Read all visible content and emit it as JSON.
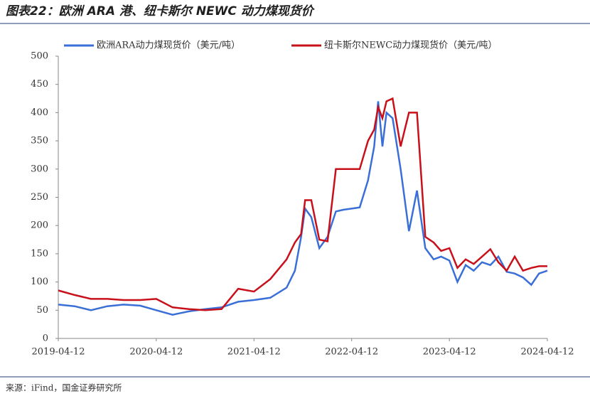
{
  "chart_data": {
    "type": "line",
    "title": "图表22：欧洲 ARA 港、纽卡斯尔 NEWC 动力煤现货价",
    "source": "来源：iFind，国金证券研究所",
    "x": [
      "2019-04-12",
      "2019-06-12",
      "2019-08-12",
      "2019-10-12",
      "2019-12-12",
      "2020-02-12",
      "2020-04-12",
      "2020-06-12",
      "2020-08-12",
      "2020-10-12",
      "2020-12-12",
      "2021-02-12",
      "2021-04-12",
      "2021-06-12",
      "2021-08-12",
      "2021-09-12",
      "2021-10-05",
      "2021-10-20",
      "2021-11-12",
      "2021-12-12",
      "2022-01-12",
      "2022-02-12",
      "2022-03-12",
      "2022-04-12",
      "2022-05-12",
      "2022-06-12",
      "2022-07-05",
      "2022-07-20",
      "2022-08-05",
      "2022-08-20",
      "2022-09-12",
      "2022-10-12",
      "2022-11-12",
      "2022-12-12",
      "2023-01-12",
      "2023-02-12",
      "2023-03-12",
      "2023-04-12",
      "2023-05-12",
      "2023-06-12",
      "2023-07-12",
      "2023-08-12",
      "2023-09-12",
      "2023-10-12",
      "2023-11-12",
      "2023-12-12",
      "2024-01-12",
      "2024-02-12",
      "2024-03-12",
      "2024-04-12"
    ],
    "series": [
      {
        "name": "欧洲ARA动力煤现货价（美元/吨）",
        "color": "#3a6fd8",
        "values": [
          60,
          57,
          50,
          57,
          60,
          58,
          50,
          42,
          48,
          52,
          55,
          65,
          68,
          72,
          90,
          120,
          180,
          230,
          215,
          160,
          180,
          225,
          228,
          230,
          232,
          280,
          340,
          420,
          340,
          400,
          390,
          300,
          190,
          262,
          160,
          140,
          145,
          138,
          100,
          130,
          120,
          135,
          130,
          145,
          118,
          115,
          108,
          95,
          115,
          120
        ]
      },
      {
        "name": "纽卡斯尔NEWC动力煤现货价（美元/吨）",
        "color": "#c8101a",
        "values": [
          85,
          77,
          70,
          70,
          68,
          68,
          70,
          55,
          52,
          50,
          52,
          88,
          83,
          105,
          140,
          170,
          185,
          245,
          245,
          175,
          172,
          300,
          300,
          300,
          300,
          350,
          370,
          410,
          390,
          420,
          425,
          340,
          400,
          400,
          180,
          170,
          155,
          160,
          125,
          140,
          132,
          145,
          158,
          135,
          120,
          145,
          120,
          125,
          128,
          128
        ]
      }
    ],
    "xlim": [
      "2019-04-12",
      "2024-04-12"
    ],
    "xticks": [
      "2019-04-12",
      "2020-04-12",
      "2021-04-12",
      "2022-04-12",
      "2023-04-12",
      "2024-04-12"
    ],
    "ylim": [
      0,
      500
    ],
    "yticks": [
      0,
      50,
      100,
      150,
      200,
      250,
      300,
      350,
      400,
      450,
      500
    ]
  }
}
